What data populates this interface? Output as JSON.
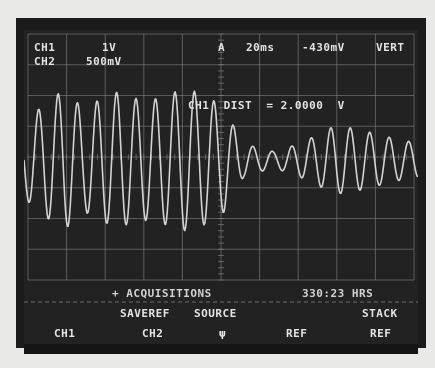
{
  "screen": {
    "readouts": {
      "ch1_label": "CH1",
      "ch1_scale": "1V",
      "ch2_label": "CH2",
      "ch2_scale": "500mV",
      "timebase_marker": "A",
      "timebase": "20ms",
      "trigger_level": "-430mV",
      "trigger_mode": "VERT",
      "cursor_measurement": "CH1  DIST  = 2.0000  V",
      "acquisitions": "+ ACQUISITIONS",
      "elapsed": "330:23 HRS"
    },
    "menu": {
      "top": [
        "SAVEREF",
        "SOURCE",
        "STACK"
      ],
      "bottom": [
        "CH1",
        "CH2",
        "REF",
        "REF"
      ],
      "source_value": "ψ"
    },
    "colors": {
      "screen_background": "#222222",
      "trace": "#e6e6e6",
      "graticule": "#8a8a8a"
    }
  }
}
